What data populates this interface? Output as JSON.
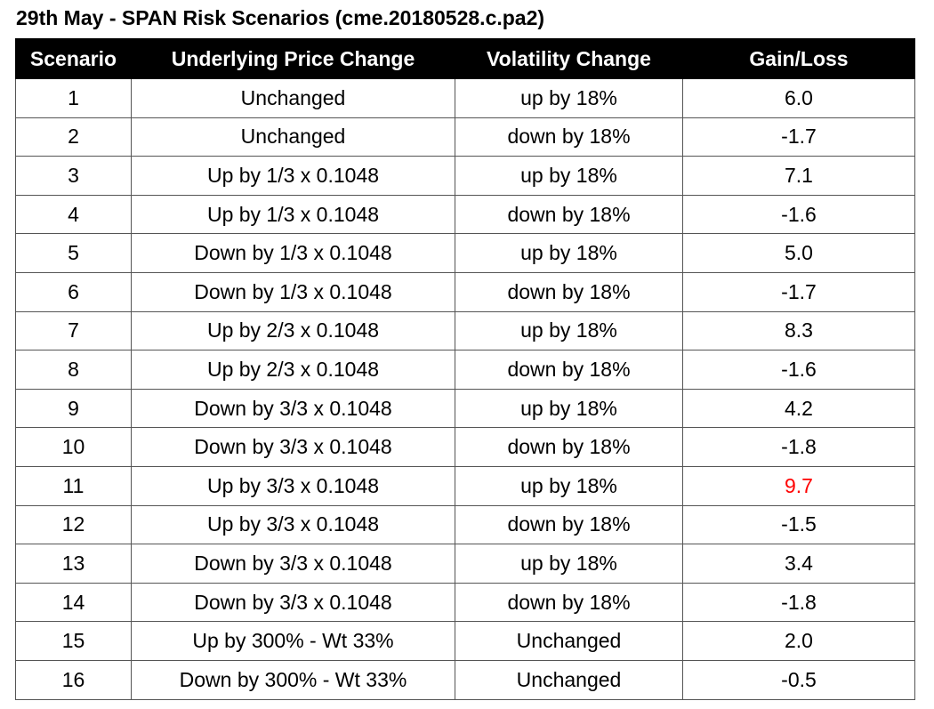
{
  "title": "29th May - SPAN Risk Scenarios (cme.20180528.c.pa2)",
  "colors": {
    "header_bg": "#000000",
    "header_text": "#ffffff",
    "highlight_value": "#ff0000"
  },
  "table": {
    "headers": [
      "Scenario",
      "Underlying Price Change",
      "Volatility Change",
      "Gain/Loss"
    ],
    "rows": [
      {
        "scenario": "1",
        "price": "Unchanged",
        "volatility": "up by 18%",
        "gain_loss": "6.0"
      },
      {
        "scenario": "2",
        "price": "Unchanged",
        "volatility": "down by 18%",
        "gain_loss": "-1.7"
      },
      {
        "scenario": "3",
        "price": "Up by 1/3 x 0.1048",
        "volatility": "up by 18%",
        "gain_loss": "7.1"
      },
      {
        "scenario": "4",
        "price": "Up by 1/3 x 0.1048",
        "volatility": "down by 18%",
        "gain_loss": "-1.6"
      },
      {
        "scenario": "5",
        "price": "Down by 1/3 x 0.1048",
        "volatility": "up by 18%",
        "gain_loss": "5.0"
      },
      {
        "scenario": "6",
        "price": "Down by 1/3 x 0.1048",
        "volatility": "down by 18%",
        "gain_loss": "-1.7"
      },
      {
        "scenario": "7",
        "price": "Up by 2/3 x 0.1048",
        "volatility": "up by 18%",
        "gain_loss": "8.3"
      },
      {
        "scenario": "8",
        "price": "Up by 2/3 x 0.1048",
        "volatility": "down by 18%",
        "gain_loss": "-1.6"
      },
      {
        "scenario": "9",
        "price": "Down by 3/3 x 0.1048",
        "volatility": "up by 18%",
        "gain_loss": "4.2"
      },
      {
        "scenario": "10",
        "price": "Down by 3/3 x 0.1048",
        "volatility": "down by 18%",
        "gain_loss": "-1.8"
      },
      {
        "scenario": "11",
        "price": "Up by 3/3 x 0.1048",
        "volatility": "up by 18%",
        "gain_loss": "9.7"
      },
      {
        "scenario": "12",
        "price": "Up by 3/3 x 0.1048",
        "volatility": "down by 18%",
        "gain_loss": "-1.5"
      },
      {
        "scenario": "13",
        "price": "Down by 3/3 x 0.1048",
        "volatility": "up by 18%",
        "gain_loss": "3.4"
      },
      {
        "scenario": "14",
        "price": "Down by 3/3 x 0.1048",
        "volatility": "down by 18%",
        "gain_loss": "-1.8"
      },
      {
        "scenario": "15",
        "price": "Up by 300% - Wt 33%",
        "volatility": "Unchanged",
        "gain_loss": "2.0"
      },
      {
        "scenario": "16",
        "price": "Down by 300% - Wt 33%",
        "volatility": "Unchanged",
        "gain_loss": "-0.5"
      }
    ],
    "highlighted_row_index": 10
  }
}
